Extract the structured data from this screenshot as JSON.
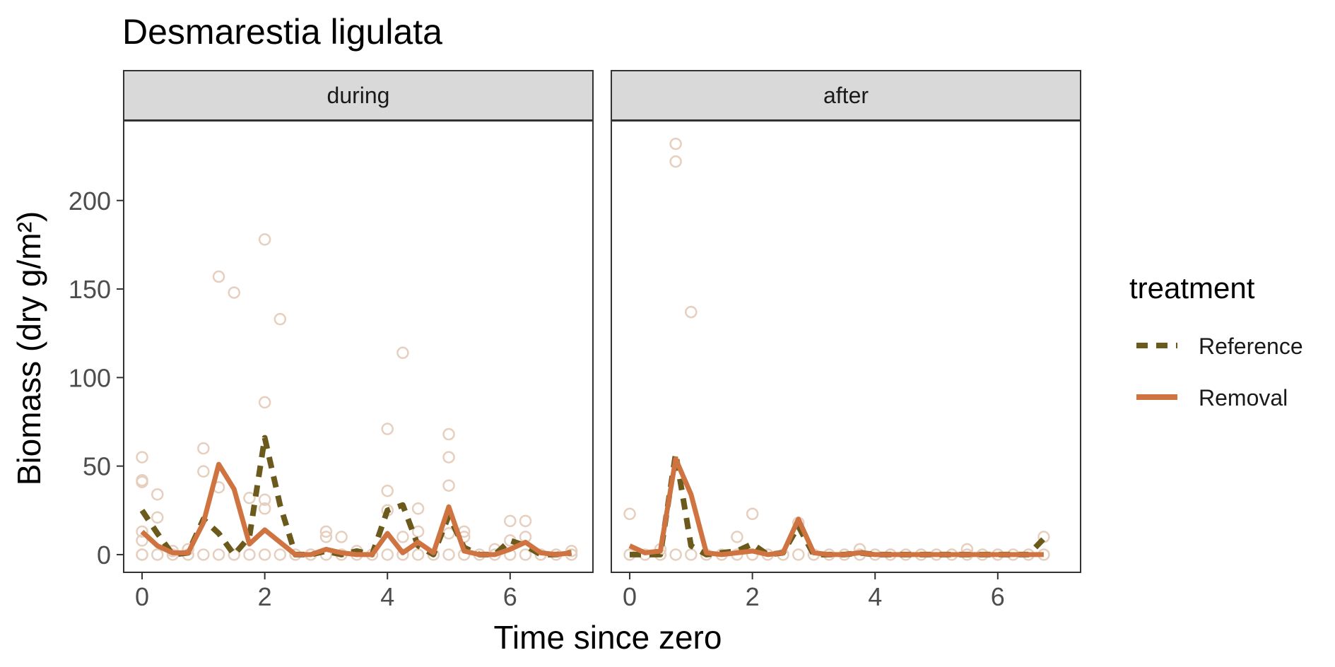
{
  "chart_data": {
    "type": "line",
    "title": "Desmarestia ligulata",
    "xlabel": "Time since zero",
    "ylabel": "Biomass (dry g/m²)",
    "xlim": [
      -0.3,
      7.35
    ],
    "ylim": [
      -10,
      245
    ],
    "x_ticks": [
      0,
      2,
      4,
      6
    ],
    "x_tick_labels": [
      "0",
      "2",
      "4",
      "6"
    ],
    "y_ticks": [
      0,
      50,
      100,
      150,
      200
    ],
    "y_tick_labels": [
      "0",
      "50",
      "100",
      "150",
      "200"
    ],
    "grid": false,
    "legend": {
      "title": "treatment",
      "position": "right",
      "entries": [
        {
          "label": "Reference",
          "color": "#6b5a1c",
          "dash": "dashed"
        },
        {
          "label": "Removal",
          "color": "#cf7440",
          "dash": "solid"
        }
      ]
    },
    "point_color": "#e6cfbf",
    "panels": [
      {
        "label": "during",
        "series": [
          {
            "name": "Reference",
            "color": "#6b5a1c",
            "dash": "dashed",
            "x": [
              0,
              0.25,
              0.5,
              0.75,
              1,
              1.25,
              1.5,
              1.75,
              2,
              2.25,
              2.5,
              2.75,
              3,
              3.25,
              3.5,
              3.75,
              4,
              4.25,
              4.5,
              4.75,
              5,
              5.25,
              5.5,
              5.75,
              6,
              6.25,
              6.5,
              6.75,
              7
            ],
            "y": [
              25,
              12,
              0,
              1,
              20,
              12,
              0,
              10,
              66,
              28,
              0,
              0,
              2,
              0,
              2,
              0,
              25,
              28,
              5,
              0,
              22,
              4,
              0,
              0,
              8,
              5,
              0,
              0,
              1
            ]
          },
          {
            "name": "Removal",
            "color": "#cf7440",
            "dash": "solid",
            "x": [
              0,
              0.25,
              0.5,
              0.75,
              1,
              1.25,
              1.5,
              1.75,
              2,
              2.25,
              2.5,
              2.75,
              3,
              3.25,
              3.5,
              3.75,
              4,
              4.25,
              4.5,
              4.75,
              5,
              5.25,
              5.5,
              5.75,
              6,
              6.25,
              6.5,
              6.75,
              7
            ],
            "y": [
              13,
              5,
              1,
              1,
              18,
              51,
              37,
              6,
              14,
              7,
              0,
              0,
              3,
              1,
              0,
              0,
              12,
              1,
              7,
              1,
              27,
              2,
              0,
              0,
              3,
              7,
              1,
              0,
              1
            ]
          }
        ],
        "points": [
          [
            0,
            55
          ],
          [
            0,
            42
          ],
          [
            0,
            41
          ],
          [
            0,
            13
          ],
          [
            0,
            8
          ],
          [
            0,
            0
          ],
          [
            0,
            0
          ],
          [
            0.25,
            34
          ],
          [
            0.25,
            21
          ],
          [
            0.25,
            0
          ],
          [
            0.5,
            0
          ],
          [
            0.5,
            2
          ],
          [
            0.75,
            0
          ],
          [
            0.75,
            3
          ],
          [
            1,
            60
          ],
          [
            1,
            47
          ],
          [
            1,
            0
          ],
          [
            1.25,
            157
          ],
          [
            1.25,
            38
          ],
          [
            1.25,
            0
          ],
          [
            1.5,
            148
          ],
          [
            1.5,
            0
          ],
          [
            1.75,
            32
          ],
          [
            1.75,
            0
          ],
          [
            2,
            178
          ],
          [
            2,
            86
          ],
          [
            2,
            31
          ],
          [
            2,
            26
          ],
          [
            2,
            0
          ],
          [
            2.25,
            133
          ],
          [
            2.25,
            0
          ],
          [
            2.5,
            0
          ],
          [
            2.75,
            0
          ],
          [
            3,
            13
          ],
          [
            3,
            10
          ],
          [
            3,
            0
          ],
          [
            3.25,
            10
          ],
          [
            3.25,
            0
          ],
          [
            3.5,
            2
          ],
          [
            3.5,
            0
          ],
          [
            3.75,
            0
          ],
          [
            4,
            71
          ],
          [
            4,
            36
          ],
          [
            4,
            25
          ],
          [
            4,
            0
          ],
          [
            4.25,
            114
          ],
          [
            4.25,
            10
          ],
          [
            4.25,
            0
          ],
          [
            4.5,
            26
          ],
          [
            4.5,
            13
          ],
          [
            4.5,
            0
          ],
          [
            4.75,
            0
          ],
          [
            5,
            68
          ],
          [
            5,
            55
          ],
          [
            5,
            39
          ],
          [
            5,
            12
          ],
          [
            5,
            0
          ],
          [
            5.25,
            13
          ],
          [
            5.25,
            10
          ],
          [
            5.25,
            0
          ],
          [
            5.5,
            0
          ],
          [
            5.75,
            3
          ],
          [
            5.75,
            0
          ],
          [
            6,
            19
          ],
          [
            6,
            8
          ],
          [
            6,
            0
          ],
          [
            6.25,
            19
          ],
          [
            6.25,
            10
          ],
          [
            6.25,
            0
          ],
          [
            6.5,
            0
          ],
          [
            6.75,
            0
          ],
          [
            7,
            2
          ],
          [
            7,
            0
          ]
        ]
      },
      {
        "label": "after",
        "series": [
          {
            "name": "Reference",
            "color": "#6b5a1c",
            "dash": "dashed",
            "x": [
              0,
              0.25,
              0.5,
              0.75,
              1,
              1.25,
              1.5,
              1.75,
              2,
              2.25,
              2.5,
              2.75,
              3,
              3.25,
              3.5,
              3.75,
              4,
              4.25,
              4.5,
              4.75,
              5,
              5.25,
              5.5,
              5.75,
              6,
              6.25,
              6.5,
              6.75
            ],
            "y": [
              0,
              0,
              0,
              57,
              5,
              0,
              1,
              2,
              6,
              0,
              1,
              16,
              0,
              0,
              0,
              1,
              0,
              0,
              0,
              0,
              0,
              0,
              0,
              0,
              0,
              0,
              0,
              9
            ]
          },
          {
            "name": "Removal",
            "color": "#cf7440",
            "dash": "solid",
            "x": [
              0,
              0.25,
              0.5,
              0.75,
              1,
              1.25,
              1.5,
              1.75,
              2,
              2.25,
              2.5,
              2.75,
              3,
              3.25,
              3.5,
              3.75,
              4,
              4.25,
              4.5,
              4.75,
              5,
              5.25,
              5.5,
              5.75,
              6,
              6.25,
              6.5,
              6.75
            ],
            "y": [
              5,
              1,
              2,
              54,
              34,
              1,
              0,
              1,
              2,
              0,
              1,
              20,
              1,
              0,
              0,
              1,
              0,
              0,
              0,
              0,
              0,
              0,
              0,
              0,
              0,
              0,
              0,
              0
            ]
          }
        ],
        "points": [
          [
            0,
            23
          ],
          [
            0,
            0
          ],
          [
            0.25,
            0
          ],
          [
            0.5,
            3
          ],
          [
            0.5,
            0
          ],
          [
            0.75,
            232
          ],
          [
            0.75,
            222
          ],
          [
            0.75,
            0
          ],
          [
            1,
            137
          ],
          [
            1,
            0
          ],
          [
            1.25,
            0
          ],
          [
            1.5,
            0
          ],
          [
            1.75,
            10
          ],
          [
            1.75,
            0
          ],
          [
            2,
            23
          ],
          [
            2,
            0
          ],
          [
            2.25,
            0
          ],
          [
            2.5,
            0
          ],
          [
            2.75,
            18
          ],
          [
            2.75,
            0
          ],
          [
            3,
            0
          ],
          [
            3.25,
            0
          ],
          [
            3.5,
            0
          ],
          [
            3.75,
            3
          ],
          [
            3.75,
            0
          ],
          [
            4,
            0
          ],
          [
            4.25,
            0
          ],
          [
            4.5,
            0
          ],
          [
            4.75,
            0
          ],
          [
            5,
            0
          ],
          [
            5.25,
            0
          ],
          [
            5.5,
            3
          ],
          [
            5.5,
            0
          ],
          [
            5.75,
            0
          ],
          [
            6,
            0
          ],
          [
            6.25,
            0
          ],
          [
            6.5,
            0
          ],
          [
            6.75,
            10
          ],
          [
            6.75,
            0
          ]
        ]
      }
    ]
  }
}
